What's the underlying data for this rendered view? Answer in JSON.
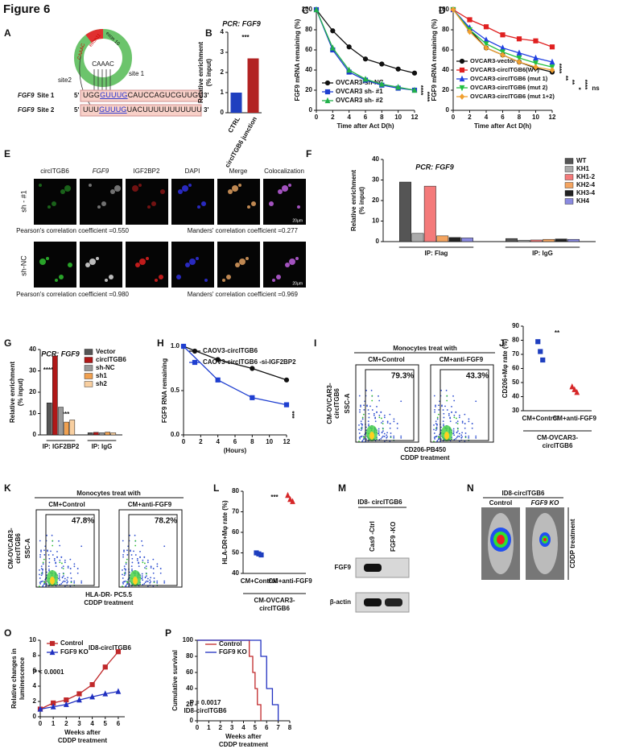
{
  "title": "Figure 6",
  "panel_labels": [
    "A",
    "B",
    "C",
    "D",
    "E",
    "F",
    "G",
    "H",
    "I",
    "J",
    "K",
    "L",
    "M",
    "N",
    "O",
    "P"
  ],
  "diagram_a": {
    "exon11": "exon11",
    "exon10": "exon 10",
    "inner": "CAAAC",
    "outer": "CAAAC",
    "site1": "site 1",
    "site2": "site2",
    "rows": [
      {
        "gene": "FGF9",
        "site": "Site 1",
        "five": "5'",
        "seq": [
          "UGG",
          "GUUUG",
          "CAUCCAGUCGUUGU"
        ],
        "three": "3'"
      },
      {
        "gene": "FGF9",
        "site": "Site 2",
        "five": "5'",
        "seq": [
          "UUU",
          "GUUUG",
          "UACUUUUUUUUUUU"
        ],
        "three": "3'"
      }
    ]
  },
  "panel_e": {
    "columns": [
      "circITGB6",
      "FGF9",
      "IGF2BP2",
      "DAPI",
      "Merge",
      "Colocalization"
    ],
    "rows": [
      {
        "label": "sh - #1",
        "pearson": "Pearson's correlation coefficient =0.550",
        "manders": "Manders' correlation coefficient =0.277"
      },
      {
        "label": "sh-NC",
        "pearson": "Pearson's correlation coefficient =0.980",
        "manders": "Manders' correlation coefficient =0.969"
      }
    ],
    "scale": "20μm"
  },
  "panel_i": {
    "header": "Monocytes treat with",
    "conditions": [
      "CM+Control",
      "CM+anti-FGF9"
    ],
    "gates": [
      "79.3%",
      "43.3%"
    ],
    "y_label": "SSC-A",
    "sample": [
      "CM-OVCAR3-",
      "circITGB6"
    ],
    "x_label": "CD206-PB450",
    "treatment": "CDDP treatment"
  },
  "panel_k": {
    "header": "Monocytes treat with",
    "conditions": [
      "CM+Control",
      "CM+anti-FGF9"
    ],
    "gates": [
      "47.8%",
      "78.2%"
    ],
    "y_label": "SSC-A",
    "sample": [
      "CM-OVCAR3-",
      "circITGB6"
    ],
    "x_label": "HLA-DR- PC5.5",
    "treatment": "CDDP treatment"
  },
  "panel_m": {
    "sample": "ID8- circITGB6",
    "lanes": [
      "Cas9 -Ctrl",
      "FGF9 -KO"
    ],
    "bands": [
      "FGF9",
      "β-actin"
    ]
  },
  "panel_n": {
    "sample": "ID8-circITGB6",
    "groups": [
      "Control",
      "FGF9 KO"
    ],
    "treatment": "CDDP treatment"
  },
  "chart_data": [
    {
      "type": "bar",
      "title": "PCR: FGF9",
      "categories": [
        "CTRL",
        "circITGB6 junction"
      ],
      "values": [
        1.0,
        2.7
      ],
      "colors": [
        "#1f3fbf",
        "#b22222"
      ],
      "ylabel": [
        "Relative enrichment",
        "(% input)"
      ],
      "ylim": [
        0,
        4
      ],
      "yticks": [
        0,
        1,
        2,
        3,
        4
      ],
      "annotations": [
        "***"
      ]
    },
    {
      "type": "line",
      "x": [
        0,
        2,
        4,
        6,
        8,
        10,
        12
      ],
      "series": [
        {
          "name": "OVCAR3-sh-NC",
          "color": "#111111",
          "marker": "circle",
          "values": [
            100,
            79,
            63,
            51,
            46,
            41,
            37
          ]
        },
        {
          "name": "OVCAR3 sh- #1",
          "color": "#1f3fd0",
          "marker": "square",
          "values": [
            100,
            60,
            38,
            30,
            25,
            22,
            20
          ]
        },
        {
          "name": "OVCAR3 sh- #2",
          "color": "#22b04a",
          "marker": "triangle",
          "values": [
            100,
            62,
            40,
            31,
            26,
            23,
            20
          ]
        }
      ],
      "xlabel": "Time after Act D(h)",
      "ylabel": "FGF9 mRNA remaining (%)",
      "xlim": [
        0,
        12
      ],
      "xticks": [
        0,
        2,
        4,
        6,
        8,
        10,
        12
      ],
      "ylim": [
        0,
        100
      ],
      "yticks": [
        0,
        20,
        40,
        60,
        80,
        100
      ],
      "annotations": [
        "****",
        "****"
      ]
    },
    {
      "type": "line",
      "x": [
        0,
        2,
        4,
        6,
        8,
        10,
        12
      ],
      "series": [
        {
          "name": "OVCAR3-vector",
          "color": "#111111",
          "marker": "circle",
          "values": [
            100,
            80,
            62,
            55,
            48,
            42,
            38
          ]
        },
        {
          "name": "OVCAR3-circITGB6(WT)",
          "color": "#e02020",
          "marker": "square",
          "values": [
            100,
            90,
            83,
            75,
            71,
            69,
            63
          ]
        },
        {
          "name": "OVCAR3-circITGB6 (mut 1)",
          "color": "#2040e0",
          "marker": "triangle",
          "values": [
            100,
            82,
            70,
            62,
            57,
            52,
            48
          ]
        },
        {
          "name": "OVCAR3-circITGB6 (mut 2)",
          "color": "#20c040",
          "marker": "down",
          "values": [
            100,
            80,
            66,
            58,
            52,
            47,
            43
          ]
        },
        {
          "name": "OVCAR3-circITGB6 (mut 1+2)",
          "color": "#f0a030",
          "marker": "diamond",
          "values": [
            100,
            78,
            62,
            55,
            48,
            43,
            40
          ]
        }
      ],
      "xlabel": "Time after Act D(h)",
      "ylabel": "FGF9 mRNA remaining (%)",
      "xlim": [
        0,
        12
      ],
      "xticks": [
        0,
        2,
        4,
        6,
        8,
        10,
        12
      ],
      "ylim": [
        0,
        100
      ],
      "yticks": [
        0,
        20,
        40,
        60,
        80,
        100
      ],
      "annotations": [
        "****",
        "**",
        "**",
        "*",
        "****",
        "ns"
      ]
    },
    {
      "type": "bar",
      "title": "PCR: FGF9",
      "categories": [
        "IP: Flag",
        "IP: IgG"
      ],
      "series": [
        {
          "name": "WT",
          "color": "#555555",
          "values": [
            29,
            1.5
          ]
        },
        {
          "name": "KH1",
          "color": "#aaaaaa",
          "values": [
            4,
            0.7
          ]
        },
        {
          "name": "KH1-2",
          "color": "#f47a7a",
          "values": [
            27,
            0.8
          ]
        },
        {
          "name": "KH2-4",
          "color": "#f4a460",
          "values": [
            2.8,
            1.1
          ]
        },
        {
          "name": "KH3-4",
          "color": "#222222",
          "values": [
            2,
            1.3
          ]
        },
        {
          "name": "KH4",
          "color": "#8a8ae0",
          "values": [
            1.8,
            1.1
          ]
        }
      ],
      "ylabel": [
        "Relative enrichment",
        "(% input)"
      ],
      "ylim": [
        0,
        40
      ],
      "yticks": [
        0,
        10,
        20,
        30,
        40
      ]
    },
    {
      "type": "bar",
      "title": "PCR: FGF9",
      "categories": [
        "IP: IGF2BP2",
        "IP: IgG"
      ],
      "series": [
        {
          "name": "Vector",
          "color": "#555555",
          "values": [
            15,
            1
          ]
        },
        {
          "name": "circITGB6",
          "color": "#b01818",
          "values": [
            37,
            1.2
          ]
        },
        {
          "name": "sh-NC",
          "color": "#999999",
          "values": [
            13,
            1
          ]
        },
        {
          "name": "sh1",
          "color": "#f0a050",
          "values": [
            6,
            1.3
          ]
        },
        {
          "name": "sh2",
          "color": "#f8cfa0",
          "values": [
            7,
            1
          ]
        }
      ],
      "ylabel": [
        "Relative enrichment",
        "(% input)"
      ],
      "ylim": [
        0,
        40
      ],
      "yticks": [
        0,
        10,
        20,
        30,
        40
      ],
      "annotations": [
        "****",
        "****"
      ]
    },
    {
      "type": "line",
      "x": [
        0,
        4,
        8,
        12
      ],
      "series": [
        {
          "name": "CAOV3-circITGB6",
          "color": "#111111",
          "marker": "circle",
          "values": [
            1.0,
            0.85,
            0.75,
            0.62
          ]
        },
        {
          "name": "CAOV3-circITGB6 -si-IGF2BP2",
          "color": "#1f3fd0",
          "marker": "square",
          "values": [
            1.0,
            0.62,
            0.42,
            0.34
          ]
        }
      ],
      "xlabel": "(Hours)",
      "ylabel": "FGF9 RNA remaining",
      "xlim": [
        0,
        12
      ],
      "xticks": [
        0,
        2,
        4,
        6,
        8,
        10,
        12
      ],
      "ylim": [
        0,
        1
      ],
      "yticks": [
        {
          "value": 0,
          "label": "0.0"
        },
        {
          "value": 0.5,
          "label": "0.5"
        },
        {
          "value": 1,
          "label": "1.0"
        }
      ],
      "annotations": [
        "***"
      ]
    },
    {
      "type": "dot",
      "categories": [
        "CM+Control",
        "CM+anti-FGF9"
      ],
      "values": [
        [
          79,
          72,
          66
        ],
        [
          47,
          45,
          43
        ]
      ],
      "colors": [
        "#1f3fbf",
        "#d62728"
      ],
      "ylabel": "CD206+Mφ rate (%)",
      "xlabel": [
        "CM-OVCAR3-",
        "circITGB6"
      ],
      "ylim": [
        30,
        90
      ],
      "yticks": [
        30,
        40,
        50,
        60,
        70,
        80,
        90
      ],
      "annotations": [
        "**"
      ]
    },
    {
      "type": "dot",
      "categories": [
        "CM+Control",
        "CM+anti-FGF9"
      ],
      "values": [
        [
          50,
          49.5,
          49
        ],
        [
          78,
          76,
          75
        ]
      ],
      "colors": [
        "#1f3fbf",
        "#d62728"
      ],
      "ylabel": "HLA-DR+Mφ rate (%)",
      "xlabel": [
        "CM-OVCAR3-",
        "circITGB6"
      ],
      "ylim": [
        40,
        80
      ],
      "yticks": [
        40,
        50,
        60,
        70,
        80
      ],
      "annotations": [
        "***"
      ]
    },
    {
      "type": "line",
      "x": [
        0,
        1,
        2,
        3,
        4,
        5,
        6
      ],
      "legend_title": "ID8-circITGB6",
      "series": [
        {
          "name": "Control",
          "color": "#c0282a",
          "marker": "square",
          "values": [
            1.0,
            1.8,
            2.2,
            3.0,
            4.2,
            6.5,
            8.5
          ]
        },
        {
          "name": "FGF9 KO",
          "color": "#2030c0",
          "marker": "triangle",
          "values": [
            1.0,
            1.3,
            1.6,
            2.2,
            2.6,
            3.0,
            3.3
          ]
        }
      ],
      "xlabel": [
        "Weeks after",
        "CDDP treatment"
      ],
      "ylabel": [
        "Relative changes in",
        "luminescence"
      ],
      "xlim": [
        0,
        6.5
      ],
      "xticks": [
        0,
        1,
        2,
        3,
        4,
        5,
        6
      ],
      "ylim": [
        0,
        10
      ],
      "yticks": [
        0,
        2,
        4,
        6,
        8,
        10
      ],
      "annotations": [
        "P < 0.0001"
      ]
    },
    {
      "type": "line",
      "series": [
        {
          "name": "Control",
          "color": "#c0282a",
          "marker": "none",
          "x": [
            0,
            4.5,
            4.5,
            4.8,
            4.8,
            5,
            5,
            5.2,
            5.2,
            5.5,
            5.5
          ],
          "values": [
            100,
            100,
            80,
            80,
            60,
            60,
            40,
            40,
            20,
            20,
            0
          ]
        },
        {
          "name": "FGF9 KO",
          "color": "#2030c0",
          "marker": "none",
          "x": [
            0,
            5.5,
            5.5,
            6,
            6,
            6.5,
            6.5,
            7,
            7
          ],
          "values": [
            100,
            100,
            80,
            80,
            40,
            40,
            20,
            20,
            0
          ]
        }
      ],
      "xlabel": [
        "Weeks after",
        "CDDP treatment"
      ],
      "ylabel": "Cumulative survival",
      "xlim": [
        0,
        8
      ],
      "xticks": [
        0,
        1,
        2,
        3,
        4,
        5,
        6,
        7,
        8
      ],
      "ylim": [
        0,
        100
      ],
      "yticks": [
        0,
        20,
        40,
        60,
        80,
        100
      ],
      "annotations": [
        "P = 0.0017",
        "ID8-circITGB6"
      ]
    }
  ]
}
